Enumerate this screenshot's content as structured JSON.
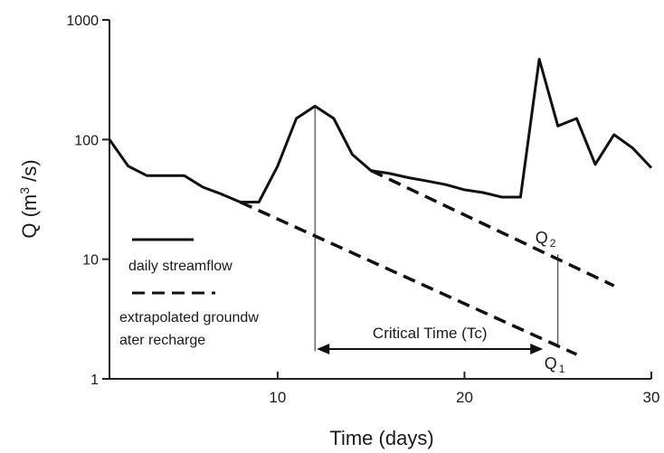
{
  "chart_data": {
    "type": "line",
    "xlabel": "Time (days)",
    "ylabel": "Q (m³/s)",
    "ylabel_parts": {
      "base": "Q (m",
      "sup": "3",
      "tail": " /s)"
    },
    "y_scale": "log",
    "xlim": [
      1,
      30
    ],
    "ylim": [
      1,
      1000
    ],
    "x_ticks": [
      10,
      20,
      30
    ],
    "y_ticks": [
      1,
      10,
      100,
      1000
    ],
    "x_tick_labels": [
      "10",
      "20",
      "30"
    ],
    "y_tick_labels": [
      "1",
      "10",
      "100",
      "1000"
    ],
    "grid": false,
    "legend_position": "left-middle",
    "series": [
      {
        "name": "daily streamflow",
        "style": "solid",
        "x": [
          1,
          2,
          3,
          4,
          5,
          6,
          7,
          8,
          9,
          10,
          11,
          12,
          13,
          14,
          15,
          16,
          17,
          18,
          19,
          20,
          21,
          22,
          23,
          24,
          25,
          26,
          27,
          28,
          29,
          30
        ],
        "y": [
          100,
          60,
          50,
          50,
          50,
          40,
          35,
          30,
          30,
          60,
          150,
          190,
          150,
          75,
          55,
          52,
          48,
          45,
          42,
          38,
          36,
          33,
          33,
          470,
          130,
          150,
          62,
          110,
          85,
          58
        ]
      },
      {
        "name": "extrapolated groundwater recharge",
        "style": "dashed",
        "segments": [
          {
            "x": [
              8,
              26
            ],
            "y": [
              30,
              1.6
            ]
          },
          {
            "x": [
              15,
              28
            ],
            "y": [
              55,
              6
            ]
          }
        ]
      }
    ],
    "legend": {
      "solid_label": "daily streamflow",
      "dashed_label_line1": "extrapolated groundw",
      "dashed_label_line2": "ater recharge"
    },
    "annotations": {
      "critical_time_label": "Critical Time (Tc)",
      "critical_time_start_x": 12,
      "critical_time_end_x": 24.2,
      "q1": {
        "base": "Q",
        "sub": "1",
        "x": 25,
        "y": 1.9
      },
      "q2": {
        "base": "Q",
        "sub": "2",
        "x": 25,
        "y": 11
      },
      "peak_marker": {
        "x": 12,
        "y_from": 1.7,
        "y_to": 190
      },
      "recession_marker": {
        "x": 25,
        "y_from": 1.9,
        "y_to": 11
      }
    }
  }
}
